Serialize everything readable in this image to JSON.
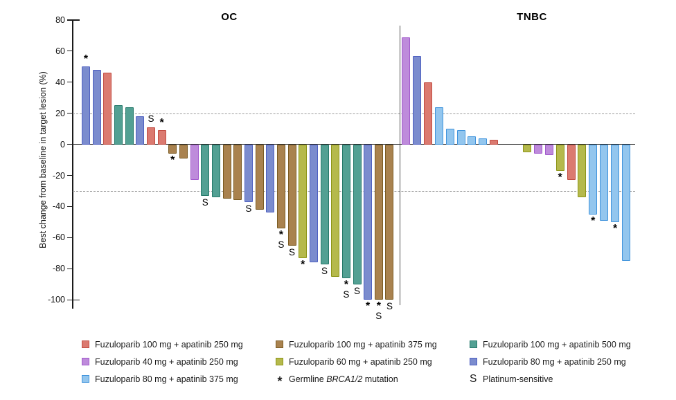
{
  "chart_data": {
    "type": "bar",
    "ylabel": "Best change from baseline in target lesion (%)",
    "ylim": [
      -100,
      80
    ],
    "yticks": [
      80,
      60,
      40,
      20,
      0,
      -20,
      -40,
      -60,
      -80,
      -100
    ],
    "reference_lines_pct": [
      20,
      -30
    ],
    "grid": "off",
    "panels": [
      {
        "title": "OC",
        "bars": [
          {
            "value": 50,
            "group": "blue",
            "flags": [
              "*"
            ]
          },
          {
            "value": 48,
            "group": "blue",
            "flags": []
          },
          {
            "value": 46,
            "group": "red",
            "flags": []
          },
          {
            "value": 25,
            "group": "teal",
            "flags": []
          },
          {
            "value": 24,
            "group": "teal",
            "flags": []
          },
          {
            "value": 18,
            "group": "blue",
            "flags": []
          },
          {
            "value": 11,
            "group": "red",
            "flags": [
              "S"
            ]
          },
          {
            "value": 9,
            "group": "red",
            "flags": [
              "*"
            ]
          },
          {
            "value": -6,
            "group": "brown",
            "flags": [
              "*"
            ]
          },
          {
            "value": -9,
            "group": "brown",
            "flags": []
          },
          {
            "value": -23,
            "group": "purple",
            "flags": []
          },
          {
            "value": -33,
            "group": "teal",
            "flags": [
              "S"
            ]
          },
          {
            "value": -34,
            "group": "teal",
            "flags": []
          },
          {
            "value": -35,
            "group": "brown",
            "flags": []
          },
          {
            "value": -36,
            "group": "brown",
            "flags": []
          },
          {
            "value": -37,
            "group": "blue",
            "flags": [
              "S"
            ]
          },
          {
            "value": -42,
            "group": "brown",
            "flags": []
          },
          {
            "value": -44,
            "group": "blue",
            "flags": []
          },
          {
            "value": -54,
            "group": "brown",
            "flags": [
              "*",
              "S"
            ]
          },
          {
            "value": -65,
            "group": "brown",
            "flags": [
              "S"
            ]
          },
          {
            "value": -73,
            "group": "yellowgreen",
            "flags": [
              "*"
            ]
          },
          {
            "value": -76,
            "group": "blue",
            "flags": []
          },
          {
            "value": -77,
            "group": "teal",
            "flags": [
              "S"
            ]
          },
          {
            "value": -85,
            "group": "yellowgreen",
            "flags": []
          },
          {
            "value": -86,
            "group": "teal",
            "flags": [
              "*",
              "S"
            ]
          },
          {
            "value": -90,
            "group": "teal",
            "flags": [
              "S"
            ]
          },
          {
            "value": -100,
            "group": "blue",
            "flags": [
              "*"
            ]
          },
          {
            "value": -100,
            "group": "brown",
            "flags": [
              "*",
              "S"
            ]
          },
          {
            "value": -100,
            "group": "brown",
            "flags": [
              "S"
            ]
          }
        ]
      },
      {
        "title": "TNBC",
        "gap_after_index": 8,
        "gap_slots": 2,
        "bars": [
          {
            "value": 69,
            "group": "purple",
            "flags": []
          },
          {
            "value": 57,
            "group": "blue",
            "flags": []
          },
          {
            "value": 40,
            "group": "red",
            "flags": []
          },
          {
            "value": 24,
            "group": "lightblue",
            "flags": []
          },
          {
            "value": 10,
            "group": "lightblue",
            "flags": []
          },
          {
            "value": 9,
            "group": "lightblue",
            "flags": []
          },
          {
            "value": 5,
            "group": "lightblue",
            "flags": []
          },
          {
            "value": 4,
            "group": "lightblue",
            "flags": []
          },
          {
            "value": 3,
            "group": "red",
            "flags": []
          },
          {
            "value": -5,
            "group": "yellowgreen",
            "flags": []
          },
          {
            "value": -6,
            "group": "purple",
            "flags": []
          },
          {
            "value": -7,
            "group": "purple",
            "flags": []
          },
          {
            "value": -17,
            "group": "yellowgreen",
            "flags": [
              "*"
            ]
          },
          {
            "value": -23,
            "group": "red",
            "flags": []
          },
          {
            "value": -34,
            "group": "yellowgreen",
            "flags": []
          },
          {
            "value": -45,
            "group": "lightblue",
            "flags": [
              "*"
            ]
          },
          {
            "value": -49,
            "group": "lightblue",
            "flags": []
          },
          {
            "value": -50,
            "group": "lightblue",
            "flags": [
              "*"
            ]
          },
          {
            "value": -75,
            "group": "lightblue",
            "flags": []
          }
        ]
      }
    ],
    "groups": {
      "red": {
        "label": "Fuzuloparib 100 mg + apatinib 250 mg",
        "fill": "#DB7A70",
        "border": "#C14B41"
      },
      "brown": {
        "label": "Fuzuloparib 100 mg + apatinib 375 mg",
        "fill": "#A9824F",
        "border": "#7A5B22"
      },
      "teal": {
        "label": "Fuzuloparib 100 mg + apatinib 500 mg",
        "fill": "#53A093",
        "border": "#25796A"
      },
      "purple": {
        "label": "Fuzuloparib 40 mg + apatinib 250 mg",
        "fill": "#BE8BDB",
        "border": "#A158CC"
      },
      "yellowgreen": {
        "label": "Fuzuloparib 60 mg + apatinib 250 mg",
        "fill": "#B5B94C",
        "border": "#8D9517"
      },
      "blue": {
        "label": "Fuzuloparib 80 mg + apatinib 250 mg",
        "fill": "#7B8CCE",
        "border": "#4E60C1"
      },
      "lightblue": {
        "label": "Fuzuloparib 80 mg + apatinib 375 mg",
        "fill": "#93C6EE",
        "border": "#3F93DC"
      }
    },
    "symbols": {
      "star": {
        "glyph": "*",
        "meaning": "Germline BRCA1/2 mutation"
      },
      "s": {
        "glyph": "S",
        "meaning": "Platinum-sensitive"
      }
    }
  },
  "legend": {
    "items": [
      {
        "type": "swatch",
        "group": "red",
        "label": "Fuzuloparib 100 mg + apatinib 250 mg"
      },
      {
        "type": "swatch",
        "group": "brown",
        "label": "Fuzuloparib 100 mg + apatinib 375 mg"
      },
      {
        "type": "swatch",
        "group": "teal",
        "label": "Fuzuloparib 100 mg + apatinib 500 mg"
      },
      {
        "type": "swatch",
        "group": "purple",
        "label": "Fuzuloparib 40 mg + apatinib 250 mg"
      },
      {
        "type": "swatch",
        "group": "yellowgreen",
        "label": "Fuzuloparib 60 mg + apatinib 250 mg"
      },
      {
        "type": "swatch",
        "group": "blue",
        "label": "Fuzuloparib 80 mg + apatinib 250 mg"
      },
      {
        "type": "swatch",
        "group": "lightblue",
        "label": "Fuzuloparib 80 mg + apatinib 375 mg"
      },
      {
        "type": "symbol",
        "symbol": "*",
        "label_prefix": "Germline ",
        "label_italic": "BRCA1/2",
        "label_suffix": " mutation"
      },
      {
        "type": "symbol",
        "symbol": "S",
        "label_prefix": "Platinum-sensitive",
        "label_italic": "",
        "label_suffix": ""
      }
    ]
  }
}
